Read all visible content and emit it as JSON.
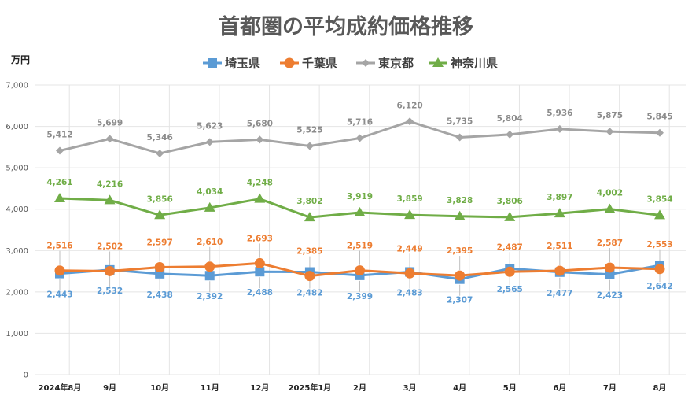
{
  "chart_data": {
    "type": "line",
    "title": "首都圏の平均成約価格推移",
    "ylabel": "万円",
    "xlabel": "",
    "ylim": [
      0,
      7000
    ],
    "yticks": [
      0,
      1000,
      2000,
      3000,
      4000,
      5000,
      6000,
      7000
    ],
    "ytick_labels": [
      "0",
      "1,000",
      "2,000",
      "3,000",
      "4,000",
      "5,000",
      "6,000",
      "7,000"
    ],
    "grid": true,
    "legend_position": "top-center",
    "categories": [
      "2024年8月",
      "9月",
      "10月",
      "11月",
      "12月",
      "2025年1月",
      "2月",
      "3月",
      "4月",
      "5月",
      "6月",
      "7月",
      "8月"
    ],
    "series": [
      {
        "name": "埼玉県",
        "color": "#5b9bd5",
        "marker": "square",
        "label_position": "below",
        "values": [
          2443,
          2532,
          2438,
          2392,
          2488,
          2482,
          2399,
          2483,
          2307,
          2565,
          2477,
          2423,
          2642
        ],
        "labels": [
          "2,443",
          "2,532",
          "2,438",
          "2,392",
          "2,488",
          "2,482",
          "2,399",
          "2,483",
          "2,307",
          "2,565",
          "2,477",
          "2,423",
          "2,642"
        ]
      },
      {
        "name": "千葉県",
        "color": "#ed7d31",
        "marker": "circle",
        "label_position": "above",
        "values": [
          2516,
          2502,
          2597,
          2610,
          2693,
          2385,
          2519,
          2449,
          2395,
          2487,
          2511,
          2587,
          2553
        ],
        "labels": [
          "2,516",
          "2,502",
          "2,597",
          "2,610",
          "2,693",
          "2,385",
          "2,519",
          "2,449",
          "2,395",
          "2,487",
          "2,511",
          "2,587",
          "2,553"
        ]
      },
      {
        "name": "東京都",
        "color": "#a5a5a5",
        "marker": "diamond",
        "label_position": "above",
        "values": [
          5412,
          5699,
          5346,
          5623,
          5680,
          5525,
          5716,
          6120,
          5735,
          5804,
          5936,
          5875,
          5845
        ],
        "labels": [
          "5,412",
          "5,699",
          "5,346",
          "5,623",
          "5,680",
          "5,525",
          "5,716",
          "6,120",
          "5,735",
          "5,804",
          "5,936",
          "5,875",
          "5,845"
        ]
      },
      {
        "name": "神奈川県",
        "color": "#70ad47",
        "marker": "triangle",
        "label_position": "above",
        "values": [
          4261,
          4216,
          3856,
          4034,
          4248,
          3802,
          3919,
          3859,
          3828,
          3806,
          3897,
          4002,
          3854
        ],
        "labels": [
          "4,261",
          "4,216",
          "3,856",
          "4,034",
          "4,248",
          "3,802",
          "3,919",
          "3,859",
          "3,828",
          "3,806",
          "3,897",
          "4,002",
          "3,854"
        ]
      }
    ]
  }
}
